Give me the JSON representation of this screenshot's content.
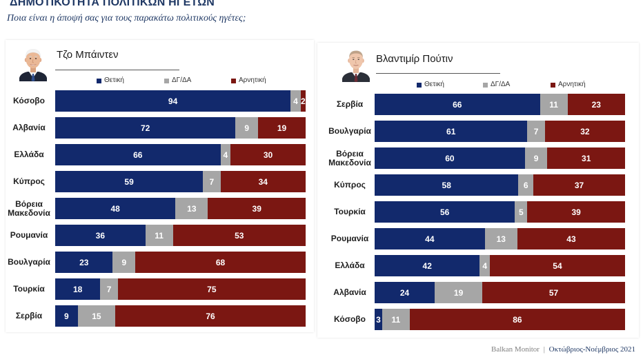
{
  "header": {
    "title": "ΔΗΜΟΤΙΚΟΤΗΤΑ ΠΟΛΙΤΙΚΩΝ ΗΓΕΤΩΝ",
    "subtitle": "Ποια είναι η άποψή σας για τους παρακάτω πολιτικούς ηγέτες;"
  },
  "footer": {
    "source": "Balkan Monitor",
    "separator": "|",
    "period": "Οκτώβριος-Νοέμβριος 2021"
  },
  "chart_data": [
    {
      "type": "bar",
      "title": "Τζο Μπάιντεν",
      "categories": [
        "Κόσοβο",
        "Αλβανία",
        "Ελλάδα",
        "Κύπρος",
        "Βόρεια Μακεδονία",
        "Ρουμανία",
        "Βουλγαρία",
        "Τουρκία",
        "Σερβία"
      ],
      "series": [
        {
          "name": "Θετική",
          "color": "#12296c",
          "values": [
            94,
            72,
            66,
            59,
            48,
            36,
            23,
            18,
            9
          ]
        },
        {
          "name": "ΔΓ/ΔΑ",
          "color": "#a6a6a6",
          "values": [
            4,
            9,
            4,
            7,
            13,
            11,
            9,
            7,
            15
          ]
        },
        {
          "name": "Αρνητική",
          "color": "#7b1712",
          "values": [
            2,
            19,
            30,
            34,
            39,
            53,
            68,
            75,
            76
          ]
        }
      ],
      "xlim": [
        0,
        100
      ]
    },
    {
      "type": "bar",
      "title": "Βλαντιμίρ Πούτιν",
      "categories": [
        "Σερβία",
        "Βουλγαρία",
        "Βόρεια Μακεδονία",
        "Κύπρος",
        "Τουρκία",
        "Ρουμανία",
        "Ελλάδα",
        "Αλβανία",
        "Κόσοβο"
      ],
      "series": [
        {
          "name": "Θετική",
          "color": "#12296c",
          "values": [
            66,
            61,
            60,
            58,
            56,
            44,
            42,
            24,
            3
          ]
        },
        {
          "name": "ΔΓ/ΔΑ",
          "color": "#a6a6a6",
          "values": [
            11,
            7,
            9,
            6,
            5,
            13,
            4,
            19,
            11
          ]
        },
        {
          "name": "Αρνητική",
          "color": "#7b1712",
          "values": [
            23,
            32,
            31,
            37,
            39,
            43,
            54,
            57,
            86
          ]
        }
      ],
      "xlim": [
        0,
        100
      ]
    }
  ]
}
